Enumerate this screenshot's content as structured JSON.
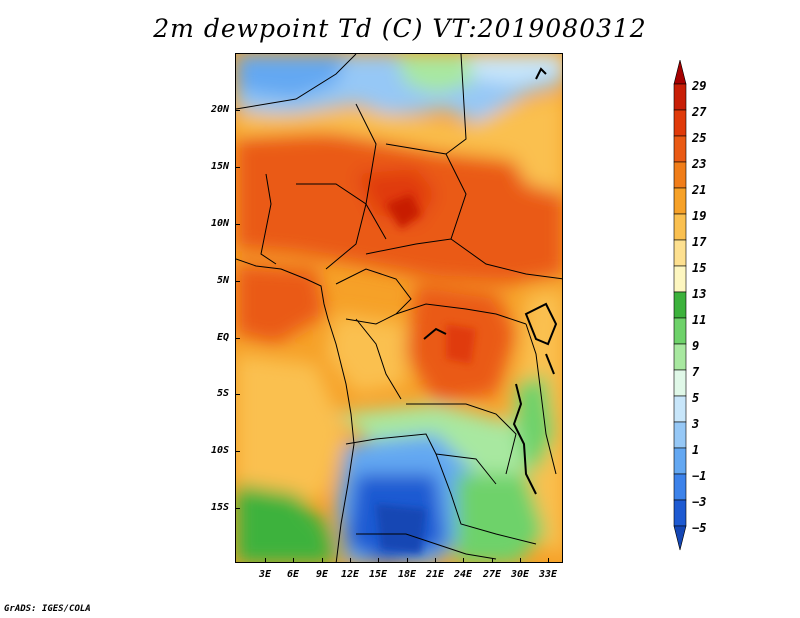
{
  "title": "2m dewpoint Td (C) VT:2019080312",
  "credit": "GrADS: IGES/COLA",
  "map": {
    "lat_labels": [
      "20N",
      "15N",
      "10N",
      "5N",
      "EQ",
      "5S",
      "10S",
      "15S"
    ],
    "lon_labels": [
      "3E",
      "6E",
      "9E",
      "12E",
      "15E",
      "18E",
      "21E",
      "24E",
      "27E",
      "30E",
      "33E"
    ]
  },
  "colorbar": {
    "labels": [
      "29",
      "27",
      "25",
      "23",
      "21",
      "19",
      "17",
      "15",
      "13",
      "11",
      "9",
      "7",
      "5",
      "3",
      "1",
      "−1",
      "−3",
      "−5"
    ],
    "colors": [
      "#a50000",
      "#c81e06",
      "#e03a0a",
      "#ea5a14",
      "#f07d19",
      "#f6a128",
      "#fac050",
      "#fde090",
      "#fdf6c0",
      "#3cb23c",
      "#6ed26a",
      "#a8e8a0",
      "#e0f8e8",
      "#c8e6fa",
      "#96c8f6",
      "#64a8f2",
      "#3c82ea",
      "#1e5ad2",
      "#1446b4"
    ]
  }
}
